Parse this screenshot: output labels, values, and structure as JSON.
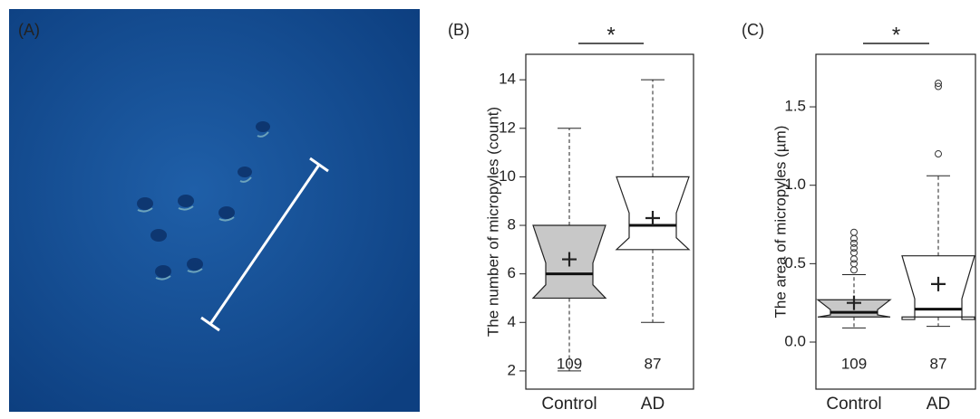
{
  "image_panel": {
    "label": "(A)"
  },
  "chart_data": [
    {
      "type": "box",
      "label": "(B)",
      "ylabel": "The number of micropyles (count)",
      "categories": [
        "Control",
        "AD"
      ],
      "n_labels": [
        "109",
        "87"
      ],
      "significance": "*",
      "colors": [
        "#c8c8c8",
        "#ffffff"
      ],
      "boxes": [
        {
          "low": 2,
          "q1": 5,
          "median": 6,
          "q3": 8,
          "high": 12,
          "mean": 6.6,
          "notch": [
            5.55,
            6.45
          ],
          "outliers": []
        },
        {
          "low": 4,
          "q1": 7,
          "median": 8,
          "q3": 10,
          "high": 14,
          "mean": 8.3,
          "notch": [
            7.49,
            8.51
          ],
          "outliers": []
        }
      ],
      "ylim": [
        1.25,
        15.05
      ],
      "yticks": [
        2,
        4,
        6,
        8,
        10,
        12,
        14
      ]
    },
    {
      "type": "box",
      "label": "(C)",
      "ylabel": "The area of micropyles (µm)",
      "categories": [
        "Control",
        "AD"
      ],
      "n_labels": [
        "109",
        "87"
      ],
      "significance": "*",
      "colors": [
        "#c8c8c8",
        "#ffffff"
      ],
      "boxes": [
        {
          "low": 0.09,
          "q1": 0.16,
          "median": 0.19,
          "q3": 0.27,
          "high": 0.43,
          "mean": 0.25,
          "notch": [
            0.173,
            0.207
          ],
          "outliers": [
            0.46,
            0.5,
            0.53,
            0.57,
            0.6,
            0.63,
            0.66,
            0.7
          ]
        },
        {
          "low": 0.1,
          "q1": 0.16,
          "median": 0.21,
          "q3": 0.55,
          "high": 1.06,
          "mean": 0.37,
          "notch": [
            0.144,
            0.276
          ],
          "outliers": [
            1.2,
            1.63,
            1.65
          ]
        }
      ],
      "ylim": [
        -0.3,
        1.835
      ],
      "yticks": [
        {
          "value": 0,
          "label": "0.0"
        },
        0.5,
        {
          "value": 1,
          "label": "1.0"
        },
        1.5
      ]
    }
  ]
}
